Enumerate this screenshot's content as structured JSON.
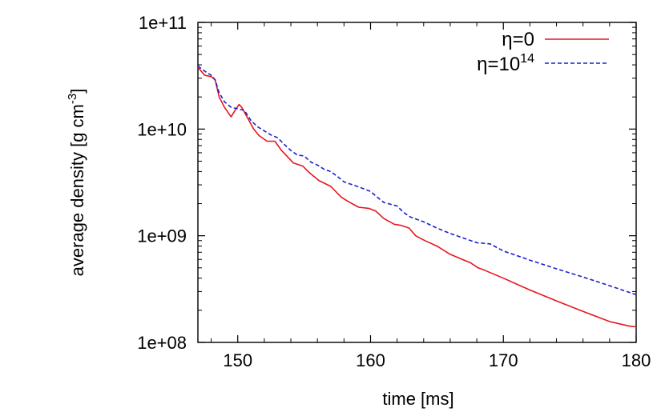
{
  "chart_data": {
    "type": "line",
    "title": "",
    "xlabel": "time [ms]",
    "ylabel": {
      "main": "average density [g cm",
      "sup": "-3",
      "close": "]"
    },
    "xlim": [
      147,
      180
    ],
    "ylim": [
      100000000,
      100000000000
    ],
    "yscale": "log",
    "grid": false,
    "legend_position": "top-right",
    "x_ticks": [
      150,
      160,
      170,
      180
    ],
    "x_tick_labels": [
      "150",
      "160",
      "170",
      "180"
    ],
    "y_ticks": [
      100000000,
      1000000000,
      10000000000,
      100000000000
    ],
    "y_tick_labels": [
      "1e+08",
      "1e+09",
      "1e+10",
      "1e+11"
    ],
    "series": [
      {
        "name": {
          "base": "η=0",
          "sup": ""
        },
        "color": "#e8141e",
        "dash": "solid",
        "x": [
          147,
          147.5,
          148,
          148.3,
          148.6,
          149.0,
          149.5,
          149.8,
          150.1,
          150.3,
          150.7,
          151.2,
          151.6,
          152.2,
          152.8,
          153.3,
          154.2,
          154.9,
          155.4,
          156.1,
          157.0,
          157.8,
          158.3,
          159.1,
          159.9,
          160.4,
          161.0,
          161.8,
          162.3,
          162.9,
          163.4,
          164.1,
          165.0,
          166.0,
          166.9,
          167.5,
          168.1,
          168.5,
          170,
          172,
          174,
          176,
          178,
          179.5,
          180
        ],
        "y": [
          38000000000.0,
          32000000000.0,
          31000000000.0,
          29000000000.0,
          20000000000.0,
          16000000000.0,
          13000000000.0,
          15000000000.0,
          17000000000.0,
          16000000000.0,
          13000000000.0,
          10000000000.0,
          8700000000.0,
          7700000000.0,
          7700000000.0,
          6300000000.0,
          4800000000.0,
          4500000000.0,
          3900000000.0,
          3300000000.0,
          2900000000.0,
          2300000000.0,
          2100000000.0,
          1850000000.0,
          1800000000.0,
          1700000000.0,
          1450000000.0,
          1280000000.0,
          1250000000.0,
          1180000000.0,
          1000000000.0,
          900000000.0,
          800000000.0,
          670000000.0,
          600000000.0,
          560000000.0,
          500000000.0,
          480000000.0,
          400000000.0,
          310000000.0,
          245000000.0,
          195000000.0,
          157000000.0,
          142000000.0,
          140000000.0
        ]
      },
      {
        "name": {
          "base": "η=10",
          "sup": "14"
        },
        "color": "#1a22c8",
        "dash": "dashed",
        "x": [
          147,
          147.5,
          148,
          148.3,
          148.6,
          149.0,
          149.5,
          150.0,
          150.5,
          151.0,
          151.5,
          152.0,
          152.5,
          153.0,
          153.5,
          154.0,
          154.5,
          155.0,
          155.5,
          156.0,
          156.5,
          157.0,
          157.5,
          158.0,
          159.0,
          160.0,
          160.5,
          161.0,
          162.0,
          162.5,
          163.0,
          164.0,
          165.0,
          166.0,
          167.0,
          168.0,
          169.0,
          170,
          172,
          174,
          176,
          178,
          180
        ],
        "y": [
          39000000000.0,
          35000000000.0,
          32000000000.0,
          29000000000.0,
          22000000000.0,
          18000000000.0,
          16000000000.0,
          15500000000.0,
          15000000000.0,
          12000000000.0,
          10500000000.0,
          9600000000.0,
          8800000000.0,
          8300000000.0,
          7200000000.0,
          6300000000.0,
          5700000000.0,
          5600000000.0,
          4900000000.0,
          4600000000.0,
          4200000000.0,
          4000000000.0,
          3600000000.0,
          3200000000.0,
          2900000000.0,
          2600000000.0,
          2300000000.0,
          2050000000.0,
          1900000000.0,
          1650000000.0,
          1500000000.0,
          1350000000.0,
          1180000000.0,
          1050000000.0,
          950000000.0,
          860000000.0,
          840000000.0,
          720000000.0,
          590000000.0,
          490000000.0,
          410000000.0,
          340000000.0,
          280000000.0
        ]
      }
    ]
  }
}
